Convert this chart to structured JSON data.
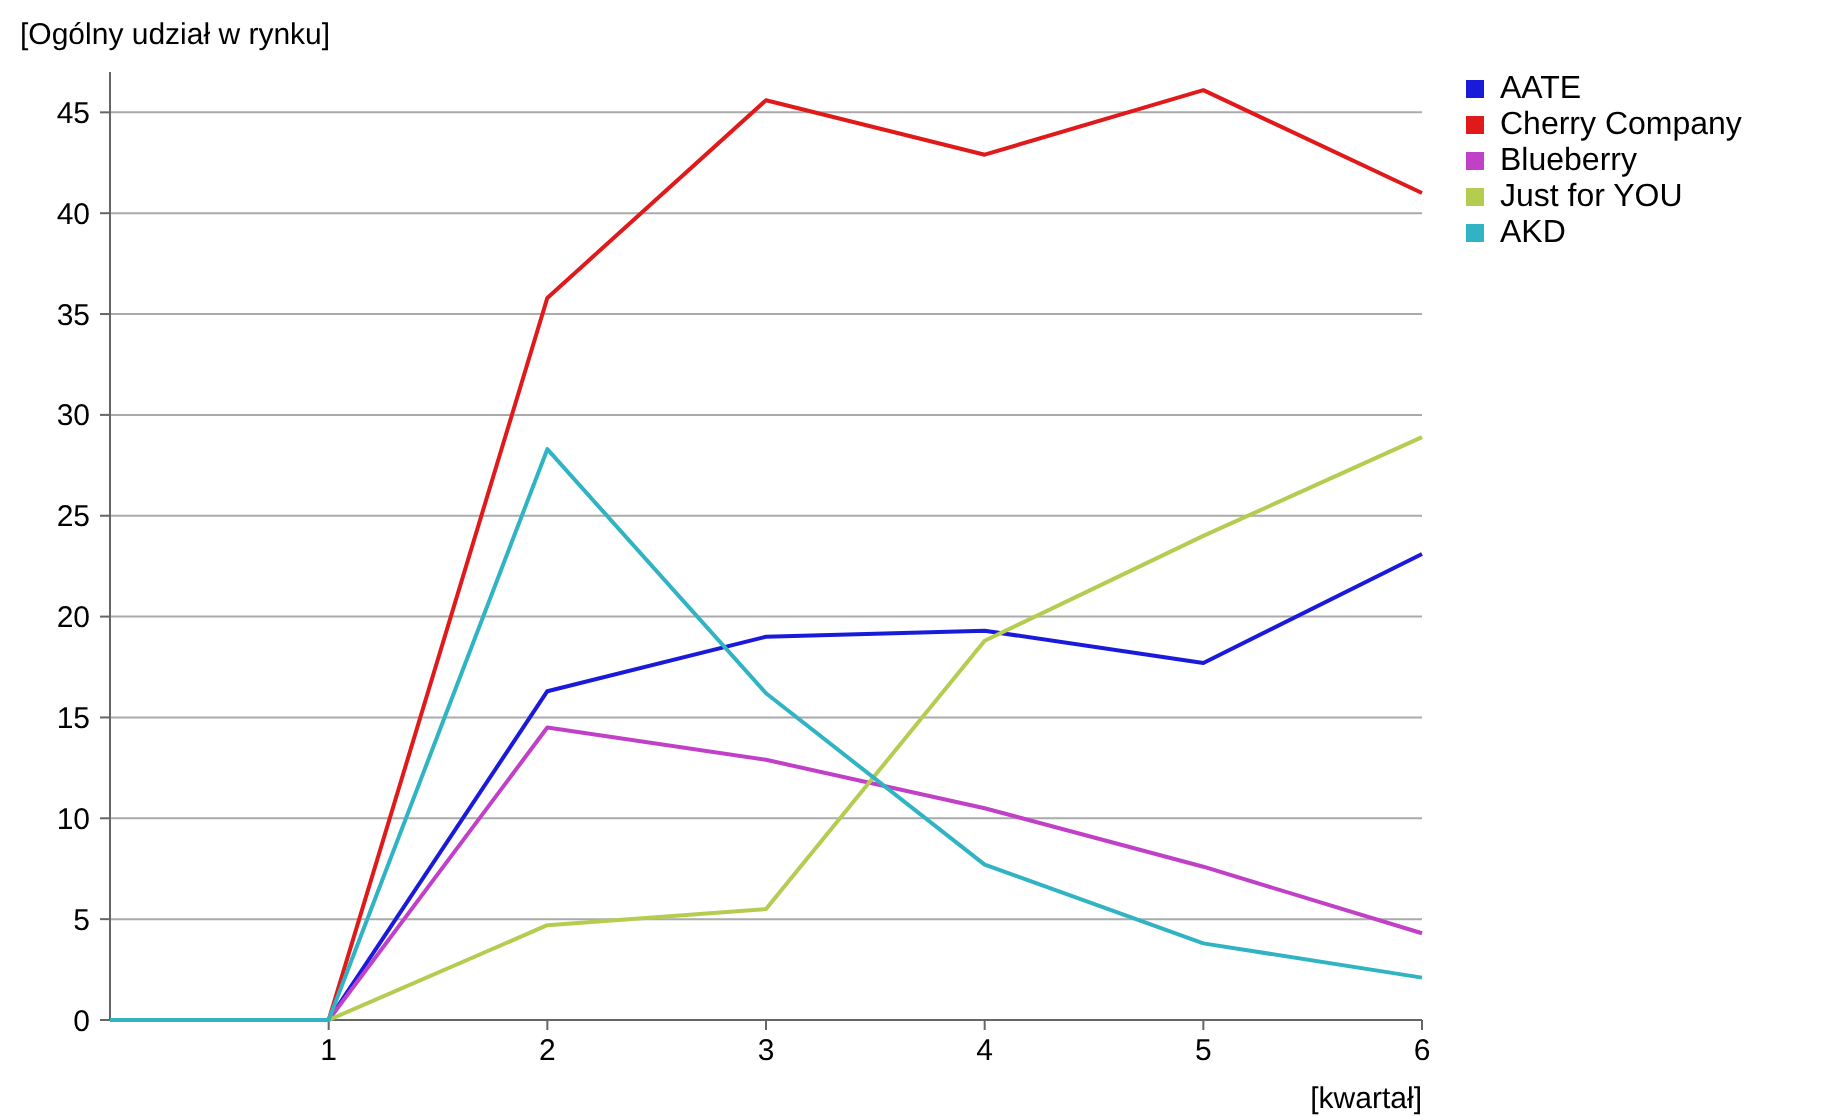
{
  "chart_data": {
    "type": "line",
    "ylabel": "[Ogólny udział w rynku]",
    "xlabel": "[kwartał]",
    "x": [
      0,
      1,
      2,
      3,
      4,
      5,
      6
    ],
    "xlim": [
      0,
      6
    ],
    "xticks": [
      1,
      2,
      3,
      4,
      5,
      6
    ],
    "ylim": [
      0,
      47
    ],
    "yticks": [
      0,
      5,
      10,
      15,
      20,
      25,
      30,
      35,
      40,
      45
    ],
    "grid": "y",
    "legend": "top right",
    "marker": "none",
    "line_style": "solid",
    "series": [
      {
        "name": "AATE",
        "color": "#1a1adb",
        "values": [
          0,
          0,
          16.3,
          19,
          19.3,
          17.7,
          23.1
        ]
      },
      {
        "name": "Cherry Company",
        "color": "#e01a1a",
        "values": [
          0,
          0,
          35.8,
          45.6,
          42.9,
          46.1,
          41
        ]
      },
      {
        "name": "Blueberry",
        "color": "#c040c8",
        "values": [
          0,
          0,
          14.5,
          12.9,
          10.5,
          7.6,
          4.3
        ]
      },
      {
        "name": "Just for YOU",
        "color": "#b4cc50",
        "values": [
          0,
          0,
          4.7,
          5.5,
          18.8,
          24,
          28.9
        ]
      },
      {
        "name": "AKD",
        "color": "#30b4c4",
        "values": [
          0,
          0,
          28.3,
          16.2,
          7.7,
          3.8,
          2.1
        ]
      }
    ]
  }
}
